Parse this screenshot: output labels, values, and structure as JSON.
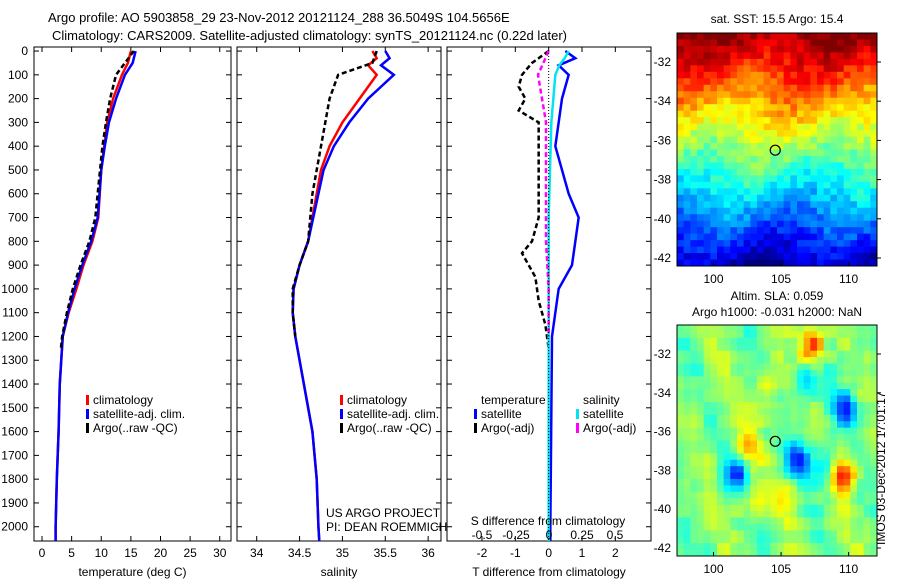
{
  "header": {
    "line1": "Argo profile: AO 5903858_29 23-Nov-2012 20121124_288 36.5049S 104.5656E",
    "line2": "Climatology: CARS2009. Satellite-adjusted climatology: synTS_20121124.nc (0.22d later)"
  },
  "colors": {
    "climatology": "#ff0000",
    "satellite": "#0000ff",
    "argo": "#000000",
    "sal_satellite": "#00e5ee",
    "sal_argo": "#ff00ff"
  },
  "depth_ticks": [
    "0",
    "100",
    "200",
    "300",
    "400",
    "500",
    "600",
    "700",
    "800",
    "900",
    "1000",
    "1100",
    "1200",
    "1300",
    "1400",
    "1500",
    "1600",
    "1700",
    "1800",
    "1900",
    "2000"
  ],
  "chart_data": [
    {
      "type": "line",
      "xlabel": "temperature (deg C)",
      "xticks": [
        "0",
        "5",
        "10",
        "15",
        "20",
        "25",
        "30"
      ],
      "xlim": [
        -1.35,
        31.9
      ],
      "ylim": [
        0,
        2060
      ],
      "legend": [
        "climatology",
        "satellite-adj. clim.",
        "Argo(..raw -QC)"
      ],
      "series": [
        {
          "name": "climatology",
          "depth": [
            0,
            50,
            100,
            200,
            300,
            400,
            500,
            700,
            800,
            900,
            1000,
            1100,
            1200,
            1400,
            1600,
            1800,
            2000,
            2060
          ],
          "values": [
            15,
            14.5,
            13.5,
            12,
            11,
            10.5,
            10,
            9.5,
            8.5,
            7,
            5.8,
            4.5,
            3.5,
            3,
            2.8,
            2.5,
            2.3,
            2.3
          ]
        },
        {
          "name": "satellite-adj. clim.",
          "depth": [
            0,
            50,
            100,
            200,
            300,
            400,
            500,
            700,
            800,
            900,
            1000,
            1100,
            1200,
            1400,
            1600,
            1800,
            2000,
            2060
          ],
          "values": [
            15.8,
            15.3,
            14,
            12.5,
            11.3,
            10.6,
            10,
            9.4,
            8.3,
            6.8,
            5.5,
            4.4,
            3.5,
            3,
            2.8,
            2.5,
            2.3,
            2.3
          ]
        },
        {
          "name": "Argo(..raw -QC)",
          "depth": [
            0,
            50,
            100,
            200,
            300,
            400,
            500,
            700,
            800,
            900,
            1000,
            1100,
            1200,
            1250
          ],
          "values": [
            15.5,
            14,
            12.5,
            11.5,
            10.8,
            10.2,
            9.8,
            9,
            8,
            6.5,
            5.2,
            4.2,
            3.4,
            3.2
          ]
        }
      ]
    },
    {
      "type": "line",
      "xlabel": "salinity",
      "xticks": [
        "34",
        "34.5",
        "35",
        "35.5",
        "36"
      ],
      "xlim": [
        33.77,
        36.15
      ],
      "ylim": [
        0,
        2060
      ],
      "legend": [
        "climatology",
        "satellite-adj. clim.",
        "Argo(..raw -QC)"
      ],
      "annotation": [
        "US ARGO PROJECT",
        "PI: DEAN ROEMMICH"
      ],
      "series": [
        {
          "name": "climatology",
          "depth": [
            0,
            30,
            60,
            100,
            200,
            300,
            400,
            500,
            600,
            700,
            800,
            900,
            1000,
            1100,
            1200,
            1400,
            1600,
            1800,
            2000,
            2060
          ],
          "values": [
            35.35,
            35.4,
            35.3,
            35.4,
            35.2,
            35.0,
            34.85,
            34.75,
            34.7,
            34.65,
            34.6,
            34.5,
            34.43,
            34.42,
            34.45,
            34.55,
            34.65,
            34.7,
            34.72,
            34.73
          ]
        },
        {
          "name": "satellite-adj. clim.",
          "depth": [
            0,
            30,
            60,
            100,
            200,
            300,
            400,
            500,
            600,
            700,
            800,
            900,
            1000,
            1100,
            1200,
            1400,
            1600,
            1800,
            2000,
            2060
          ],
          "values": [
            35.5,
            35.55,
            35.45,
            35.6,
            35.3,
            35.08,
            34.9,
            34.78,
            34.72,
            34.66,
            34.6,
            34.5,
            34.43,
            34.42,
            34.45,
            34.55,
            34.65,
            34.7,
            34.72,
            34.73
          ]
        },
        {
          "name": "Argo(..raw -QC)",
          "depth": [
            0,
            50,
            100,
            150,
            200,
            300,
            400,
            600,
            800,
            900,
            1000,
            1100,
            1200
          ],
          "values": [
            35.4,
            35.35,
            34.95,
            34.9,
            34.85,
            34.8,
            34.75,
            34.65,
            34.6,
            34.5,
            34.42,
            34.42,
            34.45
          ]
        }
      ]
    },
    {
      "type": "line",
      "xlabel": "T difference from climatology",
      "xlabel2": "S difference from climatology",
      "xticks": [
        "-2",
        "-1",
        "0",
        "1",
        "2"
      ],
      "xticks2": [
        "-0.5",
        "-0.25",
        "0",
        "0.25",
        "0.5"
      ],
      "xlim": [
        -3.05,
        3.07
      ],
      "ylim": [
        0,
        2060
      ],
      "legend_headers": [
        "temperature",
        "salinity"
      ],
      "legend": [
        "satellite",
        "Argo(-adj)",
        "satellite",
        "Argo(-adj)"
      ],
      "series": [
        {
          "name": "T satellite",
          "depth": [
            0,
            30,
            60,
            100,
            200,
            300,
            400,
            500,
            600,
            700,
            900,
            1000,
            1200,
            2000,
            2060
          ],
          "values": [
            0.5,
            0.8,
            0.3,
            0.6,
            0.4,
            0.3,
            0.2,
            0.4,
            0.6,
            0.9,
            0.7,
            0.3,
            0.1,
            0.05,
            0.05
          ]
        },
        {
          "name": "T Argo(-adj)",
          "depth": [
            0,
            50,
            100,
            150,
            200,
            250,
            300,
            500,
            700,
            800,
            850,
            950,
            1050,
            1150,
            1250
          ],
          "values": [
            0,
            -0.5,
            -0.8,
            -0.9,
            -0.7,
            -0.9,
            -0.3,
            -0.3,
            -0.3,
            -0.5,
            -0.8,
            -0.4,
            -0.3,
            -0.1,
            0
          ]
        },
        {
          "name": "S satellite",
          "depth": [
            0,
            30,
            60,
            100,
            300,
            700,
            900,
            1200,
            2000,
            2060
          ],
          "values": [
            0.15,
            0.12,
            0.08,
            0.05,
            0.02,
            0.0,
            0.0,
            0.0,
            0.0,
            0.0
          ]
        },
        {
          "name": "S Argo(-adj)",
          "depth": [
            0,
            100,
            200,
            300,
            800,
            1000,
            1200
          ],
          "values": [
            0,
            -0.08,
            -0.05,
            -0.02,
            -0.02,
            0,
            0
          ]
        }
      ]
    },
    {
      "type": "heatmap",
      "title": "sat. SST: 15.5 Argo: 15.4",
      "xticks": [
        "100",
        "105",
        "110"
      ],
      "yticks": [
        "-32",
        "-34",
        "-36",
        "-38",
        "-40",
        "-42"
      ],
      "xlim": [
        97.3,
        112.1
      ],
      "ylim": [
        -42.4,
        -30.5
      ],
      "argo_location": [
        104.57,
        -36.5
      ]
    },
    {
      "type": "heatmap",
      "title": "Altim. SLA: 0.059",
      "title2": "Argo h1000: -0.031 h2000: NaN",
      "xticks": [
        "100",
        "105",
        "110"
      ],
      "yticks": [
        "-32",
        "-34",
        "-36",
        "-38",
        "-40",
        "-42"
      ],
      "xlim": [
        97.3,
        112.1
      ],
      "ylim": [
        -42.4,
        -30.5
      ],
      "argo_location": [
        104.57,
        -36.5
      ]
    }
  ],
  "footer": {
    "stamp": "IMOS 03-Dec-2012 17:01:17"
  }
}
